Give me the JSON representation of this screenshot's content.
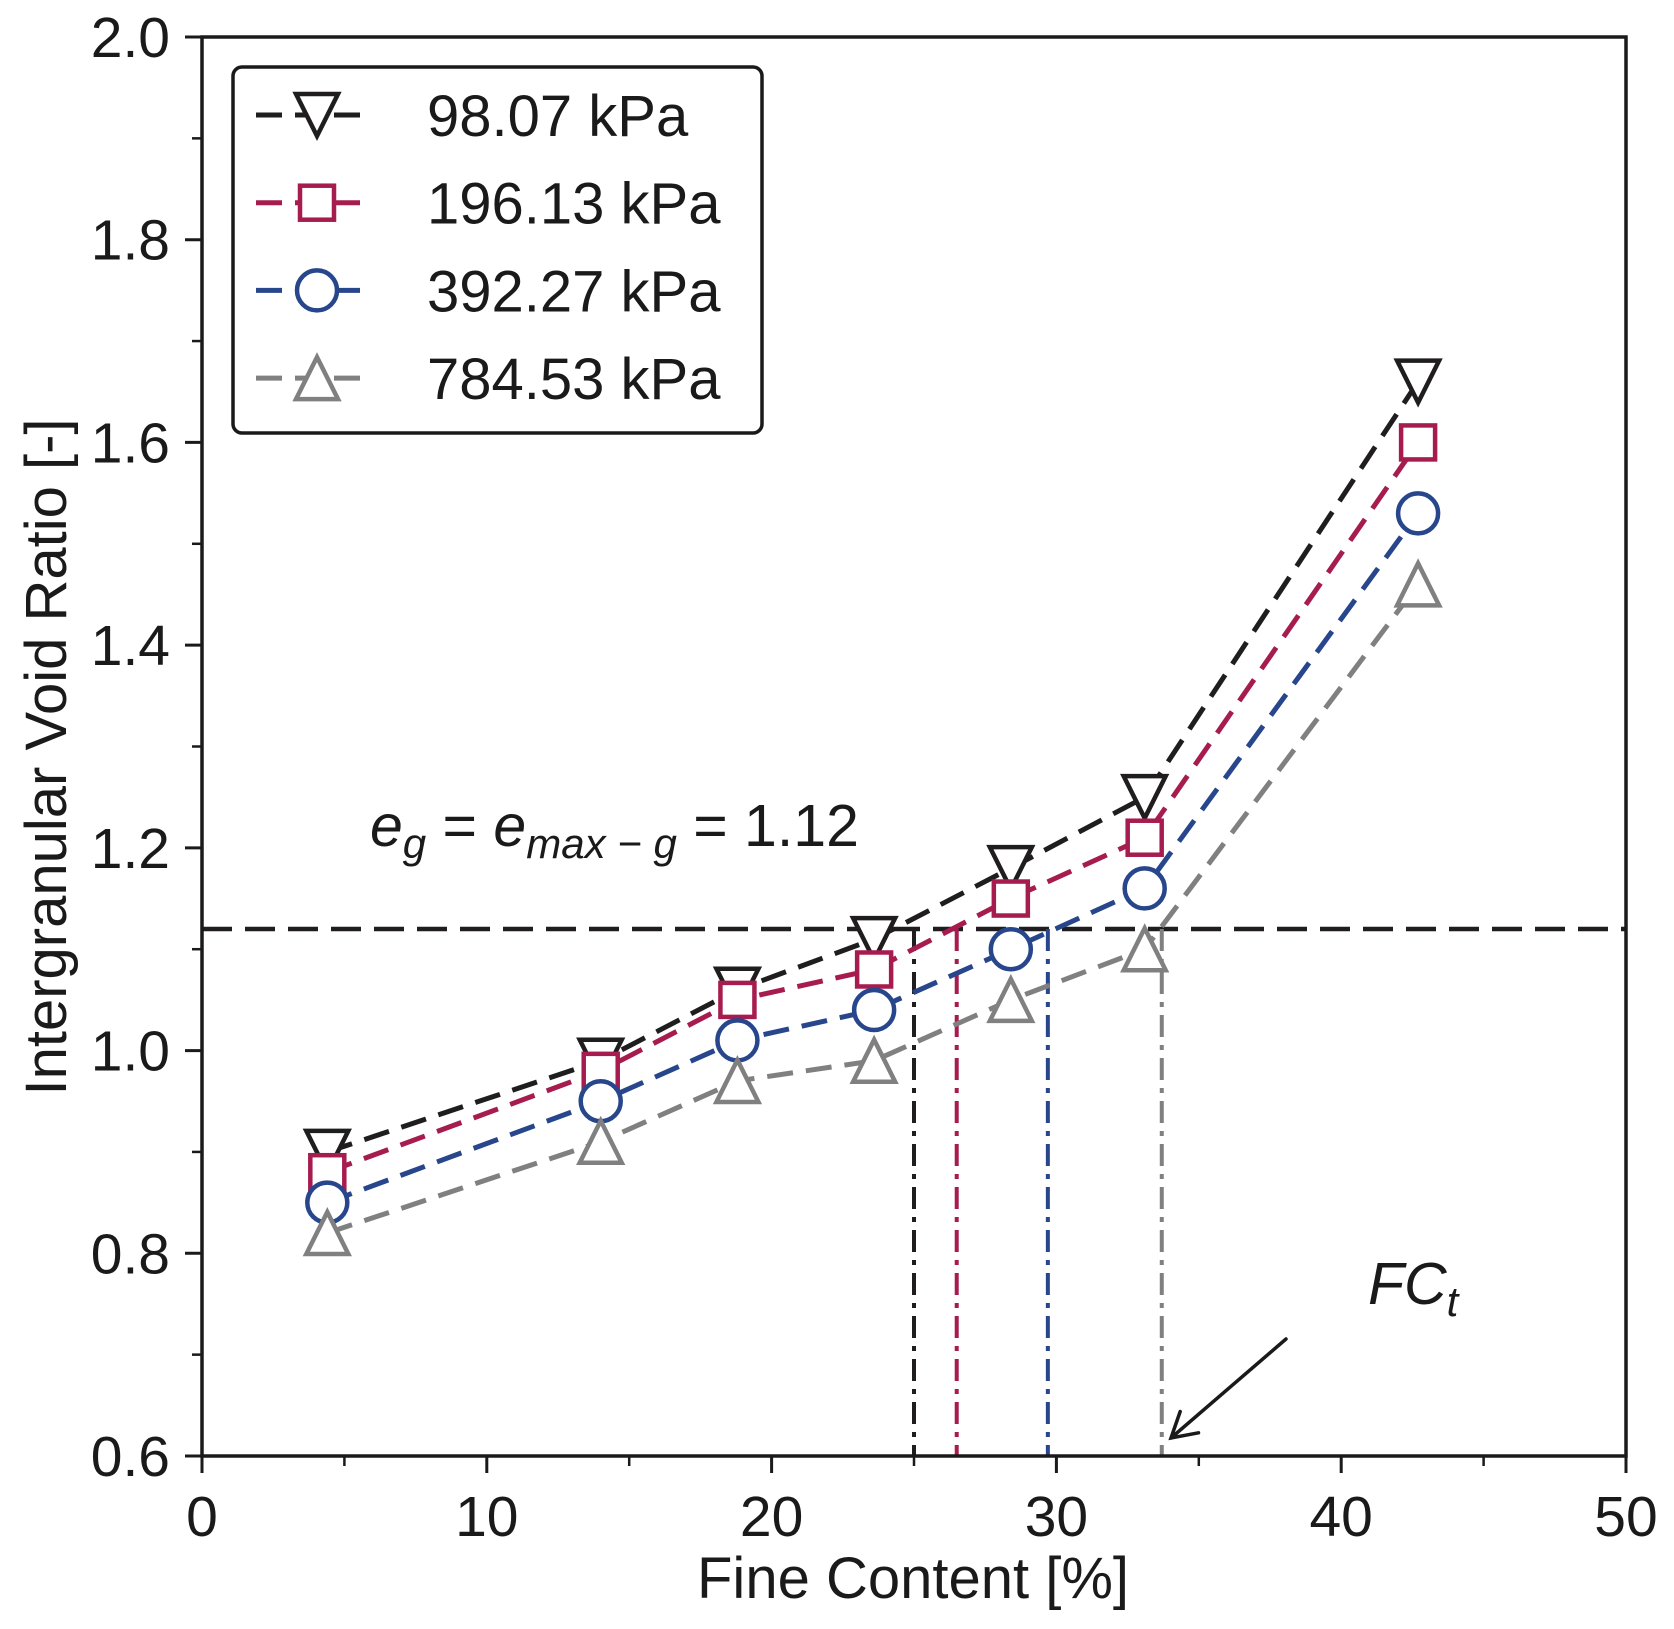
{
  "chart_data": {
    "type": "line",
    "xlabel": "Fine Content [%]",
    "ylabel": "Intergranular Void Ratio [-]",
    "xlim": [
      0,
      50
    ],
    "ylim": [
      0.6,
      2.0
    ],
    "xticks": [
      "0",
      "10",
      "20",
      "30",
      "40",
      "50"
    ],
    "yticks": [
      "0.6",
      "0.8",
      "1.0",
      "1.2",
      "1.4",
      "1.6",
      "1.8",
      "2.0"
    ],
    "grid": false,
    "legend_position": "top-left",
    "x": [
      4.4,
      14.0,
      18.8,
      23.6,
      28.4,
      33.1,
      42.7
    ],
    "series": [
      {
        "name": "98.07 kPa",
        "color": "#1f1d1e",
        "marker": "triangle-down",
        "values": [
          0.9,
          0.99,
          1.06,
          1.11,
          1.18,
          1.25,
          1.66
        ]
      },
      {
        "name": "196.13 kPa",
        "color": "#a71c4f",
        "marker": "square",
        "values": [
          0.88,
          0.98,
          1.05,
          1.08,
          1.15,
          1.21,
          1.6
        ]
      },
      {
        "name": "392.27 kPa",
        "color": "#27468c",
        "marker": "circle",
        "values": [
          0.85,
          0.95,
          1.01,
          1.04,
          1.1,
          1.16,
          1.53
        ]
      },
      {
        "name": "784.53 kPa",
        "color": "#808080",
        "marker": "triangle-up",
        "values": [
          0.82,
          0.91,
          0.97,
          0.99,
          1.05,
          1.1,
          1.46
        ]
      }
    ],
    "threshold_line": {
      "value": 1.12,
      "color": "#1f1d1e"
    },
    "threshold_label": {
      "lhs": "e",
      "lhs_sub": "g",
      "eq1": " = ",
      "mid": "e",
      "mid_sub": "max − g",
      "eq2": " = 1.12"
    },
    "fc_t": {
      "label": "FC",
      "label_sub": "t",
      "values": [
        25.0,
        26.5,
        29.7,
        33.7
      ]
    }
  }
}
